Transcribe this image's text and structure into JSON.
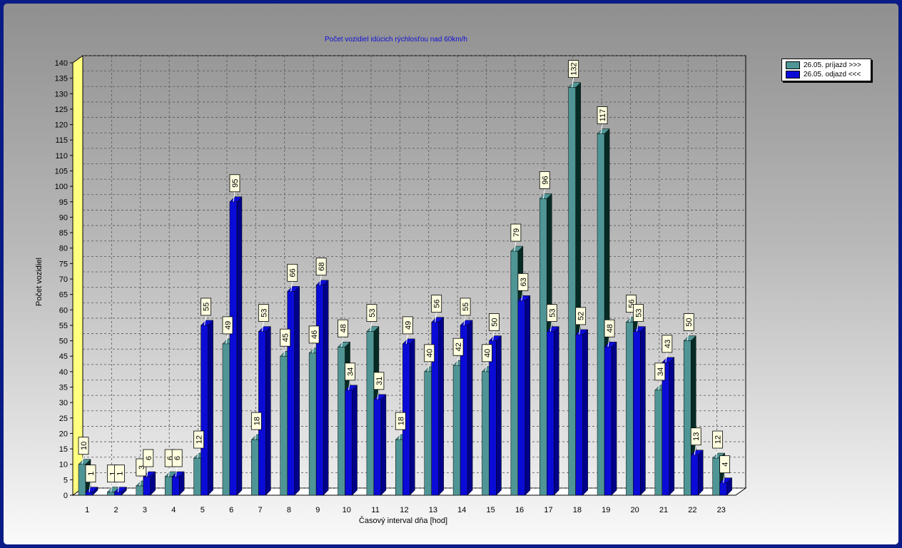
{
  "chart_data": {
    "type": "bar",
    "title": "Počet vozidiel idúcich rýchlosťou nad 60km/h",
    "xlabel": "Časový interval dňa [hod]",
    "ylabel": "Počet vozidiel",
    "ylim": [
      0,
      140
    ],
    "ytick_step": 5,
    "grid": true,
    "legend_position": "top-right",
    "categories": [
      "1",
      "2",
      "3",
      "4",
      "5",
      "6",
      "7",
      "8",
      "9",
      "10",
      "11",
      "12",
      "13",
      "14",
      "15",
      "16",
      "17",
      "18",
      "19",
      "20",
      "21",
      "22",
      "23"
    ],
    "series": [
      {
        "name": "26.05.  príjazd >>>",
        "color": "#4f9595",
        "side": "#062b24",
        "values": [
          10,
          1,
          3,
          6,
          12,
          49,
          18,
          45,
          46,
          48,
          53,
          18,
          40,
          42,
          40,
          79,
          96,
          132,
          117,
          56,
          34,
          50,
          12
        ]
      },
      {
        "name": "26.05.  odjazd <<<",
        "color": "#0b0bd8",
        "side": "#00008a",
        "values": [
          1,
          1,
          6,
          6,
          55,
          95,
          53,
          66,
          68,
          34,
          31,
          49,
          56,
          55,
          50,
          63,
          53,
          52,
          48,
          53,
          43,
          13,
          4
        ]
      }
    ]
  }
}
